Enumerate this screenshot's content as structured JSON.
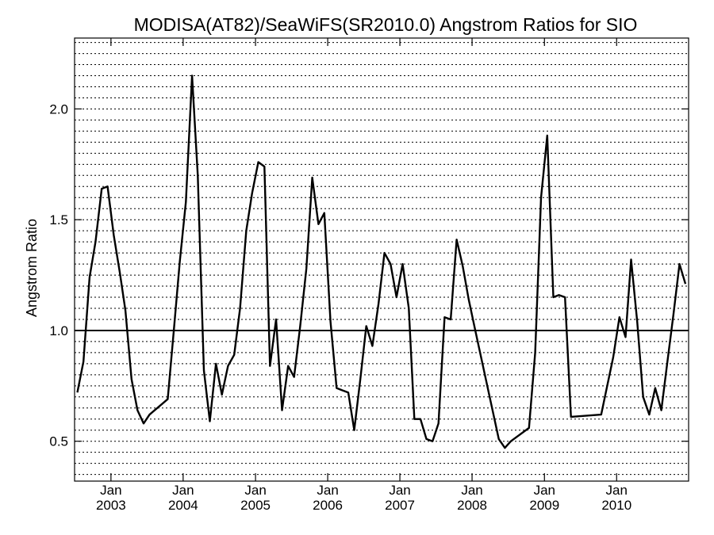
{
  "chart_data": {
    "type": "line",
    "title": "MODISA(AT82)/SeaWiFS(SR2010.0)  Angstrom Ratios for SIO",
    "xlabel": "",
    "ylabel": "Angstrom Ratio",
    "xlim": [
      "2002-07-01",
      "2010-12-31"
    ],
    "ylim": [
      0.32,
      2.32
    ],
    "yticks": [
      {
        "value": 0.5,
        "label": "0.5"
      },
      {
        "value": 1.0,
        "label": "1.0"
      },
      {
        "value": 1.5,
        "label": "1.5"
      },
      {
        "value": 2.0,
        "label": "2.0"
      }
    ],
    "xticks": [
      {
        "date": "2003-01-01",
        "month": "Jan",
        "year": "2003"
      },
      {
        "date": "2004-01-01",
        "month": "Jan",
        "year": "2004"
      },
      {
        "date": "2005-01-01",
        "month": "Jan",
        "year": "2005"
      },
      {
        "date": "2006-01-01",
        "month": "Jan",
        "year": "2006"
      },
      {
        "date": "2007-01-01",
        "month": "Jan",
        "year": "2007"
      },
      {
        "date": "2008-01-01",
        "month": "Jan",
        "year": "2008"
      },
      {
        "date": "2009-01-01",
        "month": "Jan",
        "year": "2009"
      },
      {
        "date": "2010-01-01",
        "month": "Jan",
        "year": "2010"
      }
    ],
    "grid": {
      "horizontal": true,
      "step": 0.05,
      "style": "dotted"
    },
    "reference_line": 1.0,
    "series": [
      {
        "x": [
          "2002-07-15",
          "2002-08-15",
          "2002-09-15",
          "2002-10-15",
          "2002-11-15",
          "2002-12-15",
          "2003-01-15",
          "2003-02-15",
          "2003-03-15",
          "2003-04-15",
          "2003-05-15",
          "2003-06-15",
          "2003-07-15",
          "2003-10-15",
          "2003-11-15",
          "2003-12-15",
          "2004-01-15",
          "2004-02-15",
          "2004-03-15",
          "2004-04-15",
          "2004-05-15",
          "2004-06-15",
          "2004-07-15",
          "2004-08-15",
          "2004-09-15",
          "2004-10-15",
          "2004-11-15",
          "2004-12-15",
          "2005-01-15",
          "2005-02-15",
          "2005-03-15",
          "2005-04-15",
          "2005-05-15",
          "2005-06-15",
          "2005-07-15",
          "2005-08-15",
          "2005-09-15",
          "2005-10-15",
          "2005-11-15",
          "2005-12-15",
          "2006-01-15",
          "2006-02-15",
          "2006-03-15",
          "2006-04-15",
          "2006-05-15",
          "2006-06-15",
          "2006-07-15",
          "2006-08-15",
          "2006-09-15",
          "2006-10-15",
          "2006-11-15",
          "2006-12-15",
          "2007-01-15",
          "2007-02-15",
          "2007-03-15",
          "2007-04-15",
          "2007-05-15",
          "2007-06-15",
          "2007-07-15",
          "2007-08-15",
          "2007-09-15",
          "2007-10-15",
          "2007-11-15",
          "2007-12-15",
          "2008-01-15",
          "2008-05-15",
          "2008-06-15",
          "2008-07-15",
          "2008-10-15",
          "2008-11-15",
          "2008-12-15",
          "2009-01-15",
          "2009-02-15",
          "2009-03-15",
          "2009-04-15",
          "2009-05-15",
          "2009-10-15",
          "2009-12-15",
          "2010-01-15",
          "2010-02-15",
          "2010-03-15",
          "2010-04-15",
          "2010-05-15",
          "2010-06-15",
          "2010-07-15",
          "2010-08-15",
          "2010-09-15",
          "2010-10-15",
          "2010-11-15",
          "2010-12-15"
        ],
        "y": [
          0.72,
          0.86,
          1.24,
          1.4,
          1.64,
          1.65,
          1.43,
          1.26,
          1.09,
          0.78,
          0.64,
          0.58,
          0.62,
          0.69,
          1.0,
          1.31,
          1.58,
          2.15,
          1.7,
          0.82,
          0.59,
          0.85,
          0.71,
          0.84,
          0.89,
          1.1,
          1.45,
          1.62,
          1.76,
          1.74,
          0.84,
          1.05,
          0.64,
          0.84,
          0.79,
          1.02,
          1.28,
          1.69,
          1.48,
          1.53,
          1.04,
          0.74,
          0.73,
          0.72,
          0.55,
          0.78,
          1.02,
          0.93,
          1.12,
          1.35,
          1.3,
          1.15,
          1.3,
          1.1,
          0.6,
          0.6,
          0.51,
          0.5,
          0.58,
          1.06,
          1.05,
          1.41,
          1.29,
          1.14,
          1.01,
          0.51,
          0.47,
          0.5,
          0.56,
          0.9,
          1.6,
          1.88,
          1.15,
          1.16,
          1.15,
          0.61,
          0.62,
          0.88,
          1.06,
          0.97,
          1.32,
          1.04,
          0.7,
          0.62,
          0.74,
          0.64,
          0.86,
          1.07,
          1.3,
          1.21
        ]
      }
    ]
  }
}
